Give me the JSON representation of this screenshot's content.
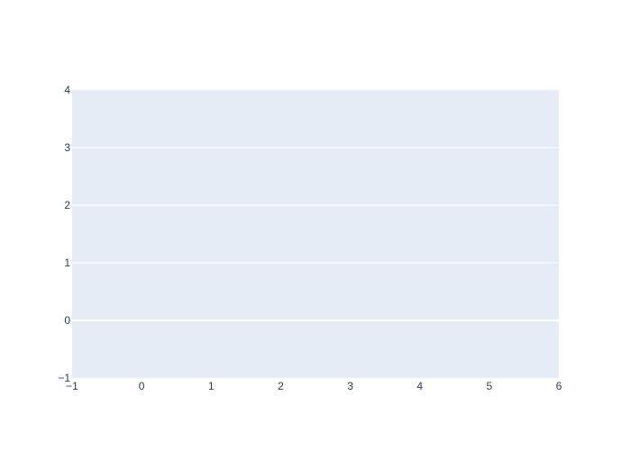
{
  "chart_data": {
    "type": "scatter",
    "title": "",
    "xlabel": "",
    "ylabel": "",
    "xlim": [
      -1,
      6
    ],
    "ylim": [
      -1,
      4
    ],
    "x_ticks": [
      -1,
      0,
      1,
      2,
      3,
      4,
      5,
      6
    ],
    "y_ticks": [
      -1,
      0,
      1,
      2,
      3,
      4
    ],
    "x_tick_labels": [
      "−1",
      "0",
      "1",
      "2",
      "3",
      "4",
      "5",
      "6"
    ],
    "y_tick_labels": [
      "−1",
      "0",
      "1",
      "2",
      "3",
      "4"
    ],
    "series": [],
    "grid": true,
    "legend": "none",
    "colors": {
      "paper": "#ffffff",
      "plot_bg": "#e5ecf6",
      "grid": "#ffffff",
      "zeroline": "#ffffff",
      "tick_text": "#2a3f5f"
    }
  }
}
